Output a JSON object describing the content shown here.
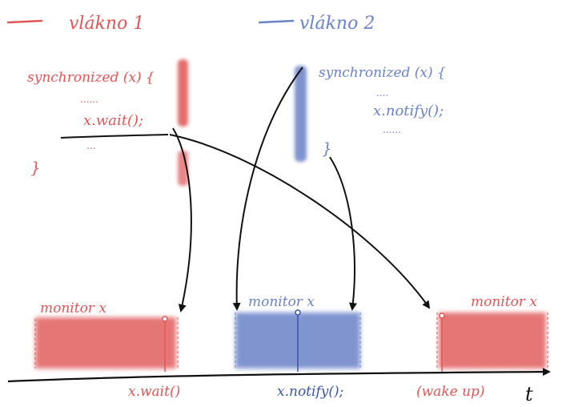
{
  "legend": {
    "thread1_label": "vlákno 1",
    "thread2_label": "vlákno 2"
  },
  "thread1_code": {
    "sync_line": "synchronized (x) {",
    "dots_before": "......",
    "wait_call": "x.wait();",
    "dots_after": "...",
    "close_brace": "}"
  },
  "thread2_code": {
    "sync_line": "synchronized (x) {",
    "dots_before": "....",
    "notify_call": "x.notify();",
    "dots_after": "......",
    "close_brace": "}"
  },
  "timeline": {
    "monitor_label_1": "monitor x",
    "monitor_label_2": "monitor x",
    "monitor_label_3": "monitor x",
    "event_wait": "x.wait()",
    "event_notify": "x.notify();",
    "event_wakeup": "(wake up)",
    "axis_label": "t"
  },
  "colors": {
    "thread1": "#e05555",
    "thread2": "#6a82c8",
    "ink": "#111111"
  }
}
